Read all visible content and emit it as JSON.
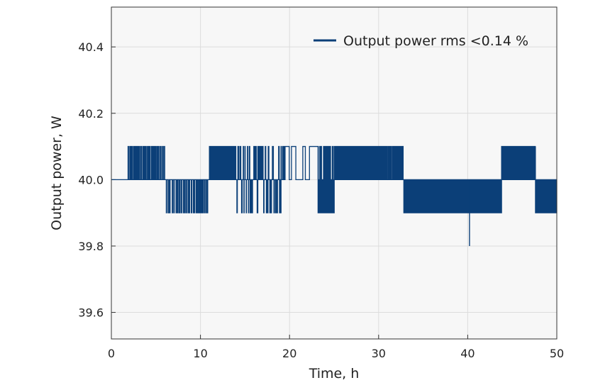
{
  "chart_data": {
    "type": "line",
    "title": "",
    "xlabel": "Time, h",
    "ylabel": "Output power, W",
    "xlim": [
      0,
      50
    ],
    "ylim": [
      39.52,
      40.52
    ],
    "x_ticks": [
      0,
      10,
      20,
      30,
      40,
      50
    ],
    "x_tick_labels": [
      "0",
      "10",
      "20",
      "30",
      "40",
      "50"
    ],
    "y_ticks": [
      39.6,
      39.8,
      40.0,
      40.2,
      40.4
    ],
    "y_tick_labels": [
      "39.6",
      "39.8",
      "40.0",
      "40.2",
      "40.4"
    ],
    "grid": true,
    "legend_position": "top-right",
    "colors": {
      "series": "#0b3f78",
      "plot_bg": "#f7f7f7",
      "grid": "#dcdcdc",
      "frame": "#333333"
    },
    "series": [
      {
        "name": "Output power rms <0.14 %",
        "segments": [
          {
            "x_start": 0.0,
            "x_end": 1.8,
            "base": 40.0,
            "alt": [],
            "density": 0
          },
          {
            "x_start": 1.8,
            "x_end": 6.0,
            "base": 40.0,
            "alt": [
              40.1
            ],
            "density": 0.45
          },
          {
            "x_start": 6.0,
            "x_end": 11.0,
            "base": 40.0,
            "alt": [
              39.9
            ],
            "density": 0.3
          },
          {
            "x_start": 11.0,
            "x_end": 14.0,
            "base": 40.0,
            "alt": [
              40.1
            ],
            "density": 2.2
          },
          {
            "x_start": 14.0,
            "x_end": 19.5,
            "base": 40.0,
            "alt": [
              39.9,
              40.1
            ],
            "density": 0.45
          },
          {
            "x_start": 19.5,
            "x_end": 23.2,
            "base": 40.1,
            "alt": [
              40.0
            ],
            "density": 0.04
          },
          {
            "x_start": 23.2,
            "x_end": 25.0,
            "base": 39.9,
            "alt": [
              40.0,
              40.1
            ],
            "density": 1.2
          },
          {
            "x_start": 25.0,
            "x_end": 31.0,
            "base": 40.0,
            "alt": [
              40.1
            ],
            "density": 2.5
          },
          {
            "x_start": 31.0,
            "x_end": 32.8,
            "base": 40.0,
            "alt": [
              40.1
            ],
            "density": 0.6
          },
          {
            "x_start": 32.8,
            "x_end": 36.0,
            "base": 40.0,
            "alt": [
              39.9
            ],
            "density": 1.0
          },
          {
            "x_start": 36.0,
            "x_end": 43.8,
            "base": 40.0,
            "alt": [
              39.9
            ],
            "density": 2.8
          },
          {
            "x_start": 43.8,
            "x_end": 47.6,
            "base": 40.1,
            "alt": [
              40.0
            ],
            "density": 1.1
          },
          {
            "x_start": 47.6,
            "x_end": 50.0,
            "base": 40.0,
            "alt": [
              39.9
            ],
            "density": 2.5
          }
        ],
        "spikes": [
          {
            "x": 40.2,
            "y": 39.8
          }
        ]
      }
    ]
  }
}
